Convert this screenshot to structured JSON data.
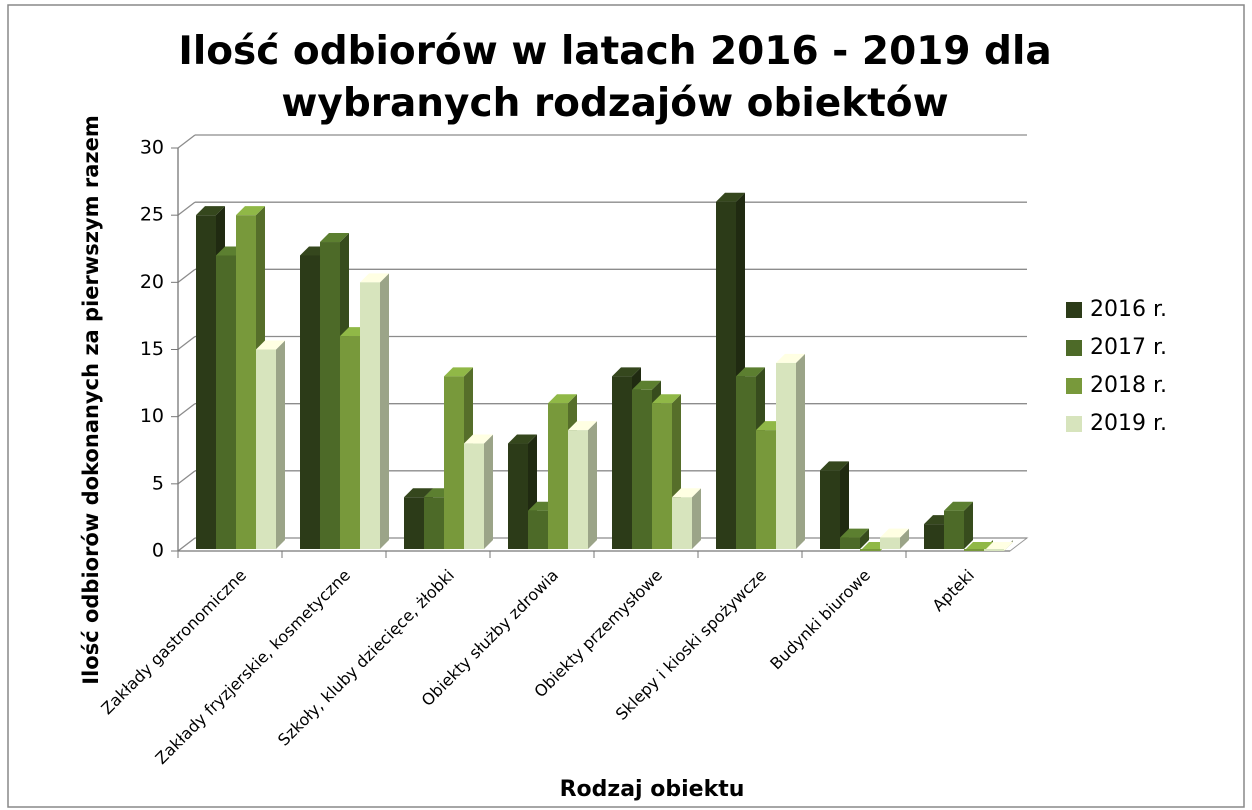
{
  "chart_data": {
    "type": "bar3d",
    "title": "Ilość odbiorów w latach 2016 - 2019 dla wybranych rodzajów obiektów",
    "x_label": "Rodzaj obiektu",
    "y_label": "Ilość odbiorów dokonanych za pierwszym razem",
    "categories": [
      "Zakłady gastronomiczne",
      "Zakłady fryzjerskie, kosmetyczne",
      "Szkoły, kluby dziecięce, żłobki",
      "Obiekty służby zdrowia",
      "Obiekty przemysłowe",
      "Sklepy i kioski spożywcze",
      "Budynki biurowe",
      "Apteki"
    ],
    "series": [
      {
        "name": "2016 r.",
        "color": "#2c3b18",
        "values": [
          25,
          22,
          4,
          8,
          13,
          26,
          6,
          2
        ]
      },
      {
        "name": "2017 r.",
        "color": "#4d6a28",
        "values": [
          22,
          23,
          4,
          3,
          12,
          13,
          1,
          3
        ]
      },
      {
        "name": "2018 r.",
        "color": "#78993b",
        "values": [
          25,
          16,
          13,
          11,
          11,
          9,
          0,
          0
        ]
      },
      {
        "name": "2019 r.",
        "color": "#d7e4bd",
        "values": [
          15,
          20,
          8,
          9,
          4,
          14,
          1,
          0
        ]
      }
    ],
    "ylim": [
      0,
      30
    ],
    "yticks": [
      0,
      5,
      10,
      15,
      20,
      25,
      30
    ],
    "grid": true,
    "legend": "right"
  }
}
